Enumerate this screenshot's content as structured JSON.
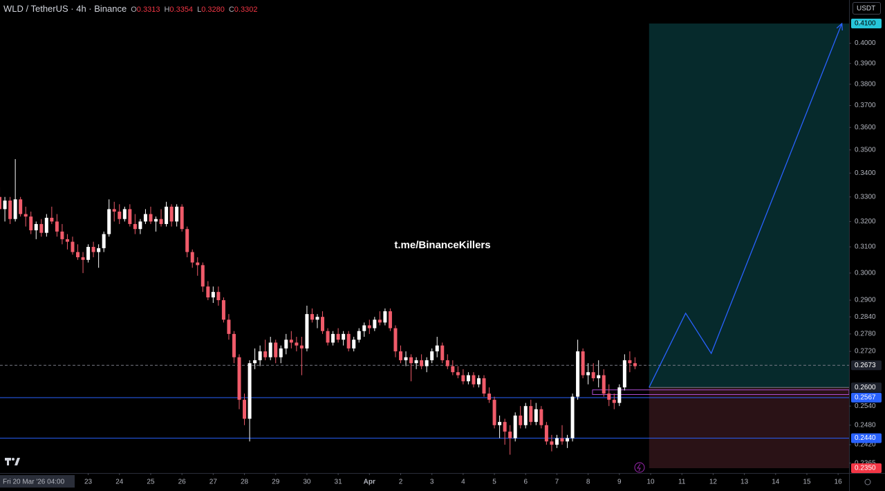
{
  "header": {
    "symbol": "WLD / TetherUS · 4h · Binance",
    "ohlc": [
      {
        "label": "O",
        "value": "0.3313"
      },
      {
        "label": "H",
        "value": "0.3354"
      },
      {
        "label": "L",
        "value": "0.3280"
      },
      {
        "label": "C",
        "value": "0.3302"
      }
    ]
  },
  "watermark": "t.me/BinanceKillers",
  "currency": "USDT",
  "chart_data": {
    "type": "candlestick",
    "up_color": "#ffffff",
    "down_color": "#f05b6a",
    "ylog": true,
    "ylim": [
      0.235,
      0.41
    ],
    "yticks": [
      {
        "value": 0.4,
        "label": "0.4000"
      },
      {
        "value": 0.39,
        "label": "0.3900"
      },
      {
        "value": 0.38,
        "label": "0.3800"
      },
      {
        "value": 0.37,
        "label": "0.3700"
      },
      {
        "value": 0.36,
        "label": "0.3600"
      },
      {
        "value": 0.35,
        "label": "0.3500"
      },
      {
        "value": 0.34,
        "label": "0.3400"
      },
      {
        "value": 0.33,
        "label": "0.3300"
      },
      {
        "value": 0.32,
        "label": "0.3200"
      },
      {
        "value": 0.31,
        "label": "0.3100"
      },
      {
        "value": 0.3,
        "label": "0.3000"
      },
      {
        "value": 0.29,
        "label": "0.2900"
      },
      {
        "value": 0.284,
        "label": "0.2840"
      },
      {
        "value": 0.278,
        "label": "0.2780"
      },
      {
        "value": 0.272,
        "label": "0.2720"
      },
      {
        "value": 0.254,
        "label": "0.2540"
      },
      {
        "value": 0.248,
        "label": "0.2480"
      },
      {
        "value": 0.242,
        "label": "0.2420"
      },
      {
        "value": 0.2365,
        "label": "0.2365"
      }
    ],
    "xlim": [
      0.177,
      27.35
    ],
    "xticks": [
      {
        "value": 0.1667,
        "label": "Fri 20 Mar '26  04:00"
      },
      {
        "value": 3,
        "label": "23"
      },
      {
        "value": 4,
        "label": "24"
      },
      {
        "value": 5,
        "label": "25"
      },
      {
        "value": 6,
        "label": "26"
      },
      {
        "value": 7,
        "label": "27"
      },
      {
        "value": 8,
        "label": "28"
      },
      {
        "value": 9,
        "label": "29"
      },
      {
        "value": 10,
        "label": "30"
      },
      {
        "value": 11,
        "label": "31"
      },
      {
        "value": 12,
        "label": "Apr"
      },
      {
        "value": 13,
        "label": "2"
      },
      {
        "value": 14,
        "label": "3"
      },
      {
        "value": 15,
        "label": "4"
      },
      {
        "value": 16,
        "label": "5"
      },
      {
        "value": 17,
        "label": "6"
      },
      {
        "value": 18,
        "label": "7"
      },
      {
        "value": 19,
        "label": "8"
      },
      {
        "value": 20,
        "label": "9"
      },
      {
        "value": 21,
        "label": "10"
      },
      {
        "value": 22,
        "label": "11"
      },
      {
        "value": 23,
        "label": "12"
      },
      {
        "value": 24,
        "label": "13"
      },
      {
        "value": 25,
        "label": "14"
      },
      {
        "value": 26,
        "label": "15"
      },
      {
        "value": 27,
        "label": "16"
      }
    ],
    "ohlc": [
      [
        0.33,
        0.334,
        0.323,
        0.325
      ],
      [
        0.325,
        0.33,
        0.32,
        0.3285
      ],
      [
        0.3285,
        0.33,
        0.319,
        0.321
      ],
      [
        0.321,
        0.346,
        0.32,
        0.329
      ],
      [
        0.329,
        0.33,
        0.322,
        0.323
      ],
      [
        0.323,
        0.326,
        0.318,
        0.322
      ],
      [
        0.322,
        0.324,
        0.315,
        0.3165
      ],
      [
        0.3165,
        0.32,
        0.313,
        0.319
      ],
      [
        0.319,
        0.321,
        0.314,
        0.3155
      ],
      [
        0.3155,
        0.323,
        0.314,
        0.3215
      ],
      [
        0.3215,
        0.326,
        0.319,
        0.32
      ],
      [
        0.32,
        0.323,
        0.314,
        0.316
      ],
      [
        0.316,
        0.319,
        0.311,
        0.313
      ],
      [
        0.313,
        0.315,
        0.309,
        0.312
      ],
      [
        0.312,
        0.314,
        0.307,
        0.308
      ],
      [
        0.308,
        0.311,
        0.305,
        0.306
      ],
      [
        0.306,
        0.308,
        0.3,
        0.305
      ],
      [
        0.305,
        0.311,
        0.304,
        0.31
      ],
      [
        0.31,
        0.312,
        0.306,
        0.308
      ],
      [
        0.308,
        0.311,
        0.302,
        0.3095
      ],
      [
        0.3095,
        0.316,
        0.308,
        0.315
      ],
      [
        0.315,
        0.329,
        0.314,
        0.325
      ],
      [
        0.325,
        0.328,
        0.32,
        0.324
      ],
      [
        0.324,
        0.327,
        0.319,
        0.321
      ],
      [
        0.321,
        0.326,
        0.32,
        0.325
      ],
      [
        0.325,
        0.327,
        0.318,
        0.319
      ],
      [
        0.319,
        0.323,
        0.315,
        0.317
      ],
      [
        0.317,
        0.321,
        0.315,
        0.32
      ],
      [
        0.32,
        0.325,
        0.319,
        0.323
      ],
      [
        0.323,
        0.326,
        0.319,
        0.32
      ],
      [
        0.32,
        0.322,
        0.316,
        0.321
      ],
      [
        0.321,
        0.325,
        0.318,
        0.319
      ],
      [
        0.319,
        0.328,
        0.318,
        0.326
      ],
      [
        0.326,
        0.327,
        0.318,
        0.32
      ],
      [
        0.32,
        0.327,
        0.318,
        0.326
      ],
      [
        0.326,
        0.327,
        0.316,
        0.317
      ],
      [
        0.317,
        0.318,
        0.306,
        0.308
      ],
      [
        0.308,
        0.309,
        0.302,
        0.304
      ],
      [
        0.304,
        0.306,
        0.299,
        0.303
      ],
      [
        0.303,
        0.304,
        0.293,
        0.295
      ],
      [
        0.295,
        0.297,
        0.29,
        0.291
      ],
      [
        0.291,
        0.295,
        0.289,
        0.293
      ],
      [
        0.293,
        0.295,
        0.288,
        0.29
      ],
      [
        0.29,
        0.291,
        0.282,
        0.283
      ],
      [
        0.283,
        0.285,
        0.276,
        0.278
      ],
      [
        0.278,
        0.279,
        0.268,
        0.27
      ],
      [
        0.27,
        0.271,
        0.253,
        0.256
      ],
      [
        0.256,
        0.258,
        0.248,
        0.25
      ],
      [
        0.25,
        0.269,
        0.243,
        0.268
      ],
      [
        0.268,
        0.273,
        0.266,
        0.269
      ],
      [
        0.269,
        0.274,
        0.267,
        0.272
      ],
      [
        0.272,
        0.276,
        0.269,
        0.27
      ],
      [
        0.27,
        0.277,
        0.269,
        0.275
      ],
      [
        0.275,
        0.276,
        0.268,
        0.27
      ],
      [
        0.27,
        0.274,
        0.268,
        0.273
      ],
      [
        0.273,
        0.278,
        0.271,
        0.276
      ],
      [
        0.276,
        0.279,
        0.273,
        0.275
      ],
      [
        0.275,
        0.277,
        0.272,
        0.274
      ],
      [
        0.274,
        0.277,
        0.264,
        0.273
      ],
      [
        0.273,
        0.288,
        0.272,
        0.285
      ],
      [
        0.285,
        0.287,
        0.282,
        0.283
      ],
      [
        0.283,
        0.285,
        0.28,
        0.284
      ],
      [
        0.284,
        0.286,
        0.278,
        0.279
      ],
      [
        0.279,
        0.28,
        0.274,
        0.275
      ],
      [
        0.275,
        0.279,
        0.274,
        0.278
      ],
      [
        0.278,
        0.28,
        0.275,
        0.276
      ],
      [
        0.276,
        0.279,
        0.274,
        0.278
      ],
      [
        0.278,
        0.279,
        0.272,
        0.273
      ],
      [
        0.273,
        0.277,
        0.272,
        0.276
      ],
      [
        0.276,
        0.28,
        0.275,
        0.279
      ],
      [
        0.279,
        0.282,
        0.277,
        0.281
      ],
      [
        0.281,
        0.283,
        0.278,
        0.28
      ],
      [
        0.28,
        0.284,
        0.279,
        0.283
      ],
      [
        0.283,
        0.286,
        0.281,
        0.282
      ],
      [
        0.282,
        0.287,
        0.281,
        0.286
      ],
      [
        0.286,
        0.287,
        0.279,
        0.28
      ],
      [
        0.28,
        0.281,
        0.27,
        0.272
      ],
      [
        0.272,
        0.274,
        0.268,
        0.269
      ],
      [
        0.269,
        0.272,
        0.267,
        0.27
      ],
      [
        0.27,
        0.271,
        0.262,
        0.268
      ],
      [
        0.268,
        0.27,
        0.266,
        0.269
      ],
      [
        0.269,
        0.271,
        0.266,
        0.267
      ],
      [
        0.267,
        0.27,
        0.265,
        0.269
      ],
      [
        0.269,
        0.273,
        0.268,
        0.272
      ],
      [
        0.272,
        0.277,
        0.27,
        0.274
      ],
      [
        0.274,
        0.275,
        0.268,
        0.269
      ],
      [
        0.269,
        0.271,
        0.266,
        0.267
      ],
      [
        0.267,
        0.269,
        0.264,
        0.265
      ],
      [
        0.265,
        0.267,
        0.263,
        0.264
      ],
      [
        0.264,
        0.266,
        0.261,
        0.262
      ],
      [
        0.262,
        0.265,
        0.261,
        0.264
      ],
      [
        0.264,
        0.265,
        0.26,
        0.261
      ],
      [
        0.261,
        0.264,
        0.26,
        0.263
      ],
      [
        0.263,
        0.264,
        0.257,
        0.258
      ],
      [
        0.258,
        0.26,
        0.255,
        0.256
      ],
      [
        0.256,
        0.257,
        0.247,
        0.248
      ],
      [
        0.248,
        0.251,
        0.244,
        0.249
      ],
      [
        0.249,
        0.25,
        0.242,
        0.246
      ],
      [
        0.246,
        0.248,
        0.239,
        0.244
      ],
      [
        0.244,
        0.252,
        0.243,
        0.251
      ],
      [
        0.251,
        0.254,
        0.247,
        0.248
      ],
      [
        0.248,
        0.255,
        0.247,
        0.254
      ],
      [
        0.254,
        0.256,
        0.248,
        0.249
      ],
      [
        0.249,
        0.255,
        0.248,
        0.253
      ],
      [
        0.253,
        0.254,
        0.247,
        0.248
      ],
      [
        0.248,
        0.249,
        0.242,
        0.243
      ],
      [
        0.243,
        0.245,
        0.24,
        0.242
      ],
      [
        0.242,
        0.245,
        0.241,
        0.244
      ],
      [
        0.244,
        0.248,
        0.242,
        0.243
      ],
      [
        0.243,
        0.245,
        0.241,
        0.244
      ],
      [
        0.244,
        0.258,
        0.243,
        0.257
      ],
      [
        0.257,
        0.276,
        0.256,
        0.272
      ],
      [
        0.272,
        0.273,
        0.263,
        0.264
      ],
      [
        0.264,
        0.268,
        0.261,
        0.265
      ],
      [
        0.265,
        0.268,
        0.262,
        0.263
      ],
      [
        0.263,
        0.269,
        0.26,
        0.264
      ],
      [
        0.264,
        0.266,
        0.257,
        0.258
      ],
      [
        0.258,
        0.261,
        0.254,
        0.256
      ],
      [
        0.256,
        0.258,
        0.253,
        0.255
      ],
      [
        0.255,
        0.261,
        0.254,
        0.26
      ],
      [
        0.26,
        0.271,
        0.259,
        0.269
      ],
      [
        0.269,
        0.272,
        0.265,
        0.268
      ],
      [
        0.268,
        0.27,
        0.266,
        0.267
      ]
    ],
    "levels": [
      {
        "value": 0.2673,
        "label": "0.2673",
        "color": "#787b86",
        "label_bg": "#1e222d",
        "dashed": true
      },
      {
        "value": 0.2567,
        "label": "0.2567",
        "color": "#2962ff",
        "label_bg": "#2962ff",
        "dashed": false
      },
      {
        "value": 0.244,
        "label": "0.2440",
        "color": "#2962ff",
        "label_bg": "#2962ff",
        "dashed": false
      }
    ],
    "position": {
      "x_start": 20.95,
      "profit_color": "#062a2c",
      "loss_color": "#2a1216",
      "entry": {
        "value": 0.26,
        "label": "0.2600",
        "label_bg": "#1e222d"
      },
      "target": {
        "value": 0.41,
        "label": "0.4100",
        "label_bg": "#26c6da"
      },
      "stop": {
        "value": 0.235,
        "label": "0.2350",
        "label_bg": "#f23645"
      }
    },
    "zone": {
      "x_start": 19.14,
      "low": 0.2577,
      "high": 0.2592,
      "color": "#b04fd8"
    },
    "projection": {
      "x": [
        20.95,
        22.12,
        22.94,
        27.12
      ],
      "y": [
        0.26,
        0.2853,
        0.2713,
        0.41
      ],
      "color": "#2962ff"
    }
  }
}
